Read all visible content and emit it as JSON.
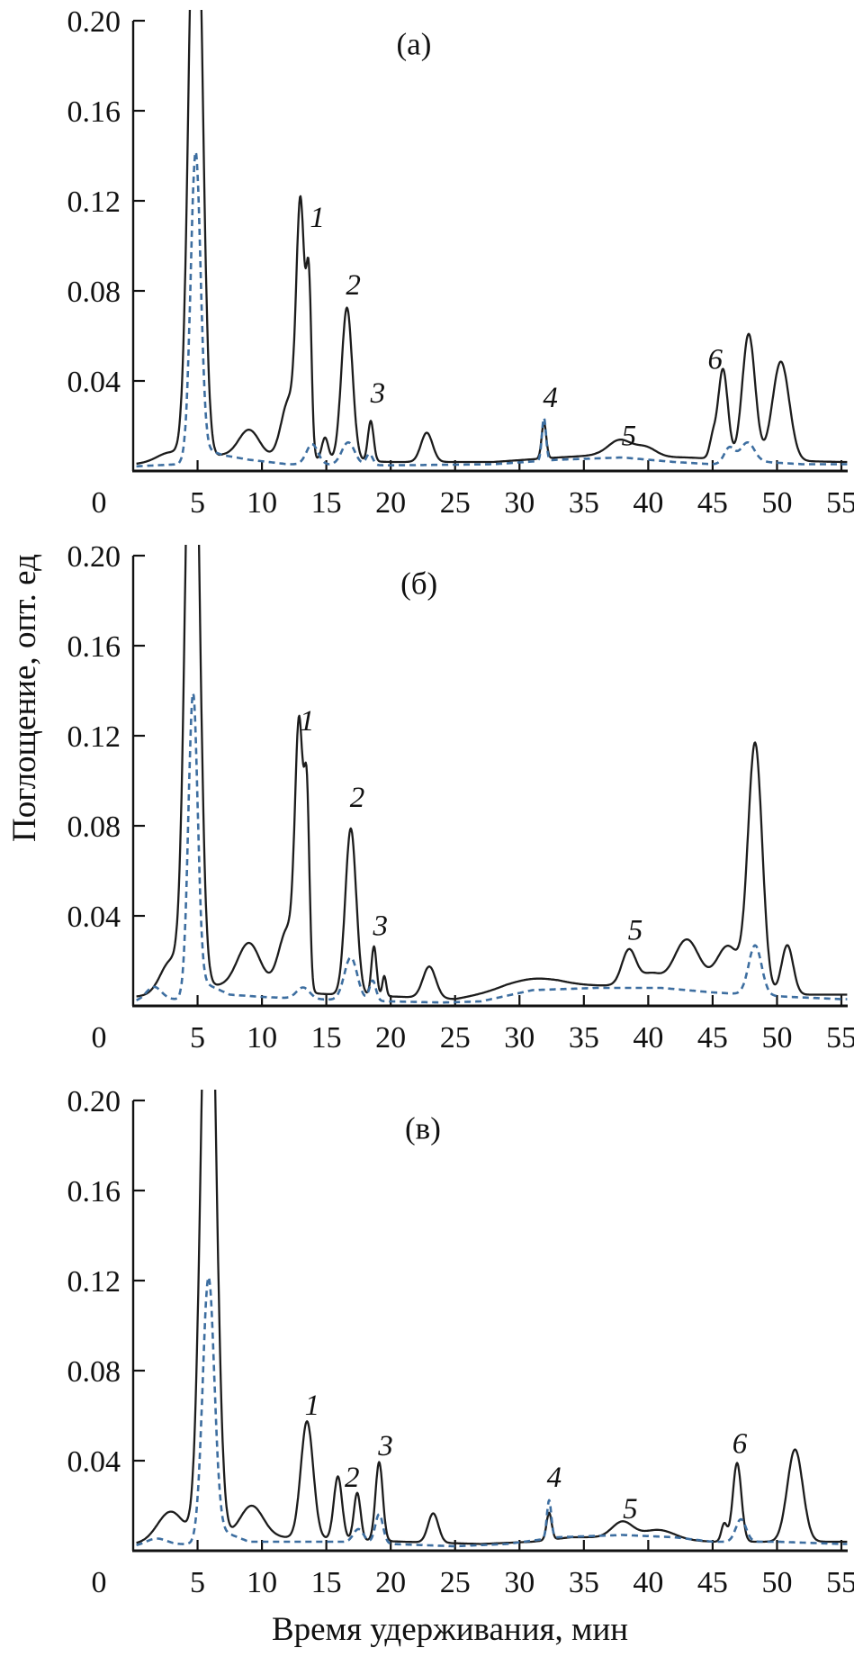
{
  "figure": {
    "description": "Three stacked HPLC chromatogram panels",
    "panel_letters": [
      "(а)",
      "(б)",
      "(в)"
    ]
  },
  "chart_data": {
    "type": "line",
    "title": "",
    "xlabel": "Время удерживания, мин",
    "ylabel": "Поглощение, опт. ед",
    "xlim": [
      0,
      55
    ],
    "ylim": [
      0,
      0.2
    ],
    "x_ticks": [
      0,
      5,
      10,
      15,
      20,
      25,
      30,
      35,
      40,
      45,
      50,
      55
    ],
    "y_tick_values": [
      0.04,
      0.08,
      0.12,
      0.16,
      0.2
    ],
    "y_tick_labels": [
      "0.04",
      "0.08",
      "0.12",
      "0.16",
      "0.20"
    ],
    "grid": false,
    "legend": "none",
    "colors": {
      "solid_line": "#1c1c1c",
      "dashed_line": "#3d6ea0"
    },
    "series_model": "each series = sum of gaussian peaks [center_min, height_au, sigma_min] over linear baseline [x_min, y_au]",
    "panels": [
      {
        "label": "(а)",
        "label_pos": {
          "x": 21.8,
          "y": 0.19
        },
        "annotations": [
          {
            "n": "1",
            "x": 14.3,
            "y": 0.113
          },
          {
            "n": "2",
            "x": 17.1,
            "y": 0.083
          },
          {
            "n": "3",
            "x": 19.0,
            "y": 0.035
          },
          {
            "n": "4",
            "x": 32.4,
            "y": 0.033
          },
          {
            "n": "5",
            "x": 38.5,
            "y": 0.016
          },
          {
            "n": "6",
            "x": 45.2,
            "y": 0.05
          }
        ],
        "solid": {
          "peaks": [
            [
              2.9,
              0.004,
              1.0
            ],
            [
              4.85,
              0.3,
              0.5
            ],
            [
              9.0,
              0.012,
              0.8
            ],
            [
              12.1,
              0.026,
              0.6
            ],
            [
              13.0,
              0.108,
              0.32
            ],
            [
              13.65,
              0.072,
              0.2
            ],
            [
              14.9,
              0.01,
              0.25
            ],
            [
              16.6,
              0.068,
              0.42
            ],
            [
              18.45,
              0.018,
              0.22
            ],
            [
              22.8,
              0.013,
              0.45
            ],
            [
              31.9,
              0.016,
              0.18
            ],
            [
              37.8,
              0.007,
              0.9
            ],
            [
              39.8,
              0.004,
              0.8
            ],
            [
              45.0,
              0.008,
              0.25
            ],
            [
              45.8,
              0.04,
              0.38
            ],
            [
              47.8,
              0.056,
              0.5
            ],
            [
              50.3,
              0.044,
              0.65
            ]
          ],
          "baseline": [
            [
              0,
              0.003
            ],
            [
              2,
              0.004
            ],
            [
              5,
              0.005
            ],
            [
              7,
              0.007
            ],
            [
              10,
              0.006
            ],
            [
              14,
              0.005
            ],
            [
              20,
              0.004
            ],
            [
              28,
              0.004
            ],
            [
              33,
              0.006
            ],
            [
              36,
              0.007
            ],
            [
              43,
              0.006
            ],
            [
              47,
              0.005
            ],
            [
              55,
              0.004
            ]
          ]
        },
        "dashed": {
          "peaks": [
            [
              4.85,
              0.134,
              0.38
            ],
            [
              13.9,
              0.009,
              0.45
            ],
            [
              16.7,
              0.01,
              0.5
            ],
            [
              18.35,
              0.005,
              0.25
            ],
            [
              31.9,
              0.019,
              0.16
            ],
            [
              46.3,
              0.007,
              0.4
            ],
            [
              47.7,
              0.009,
              0.55
            ]
          ],
          "baseline": [
            [
              0,
              0.002
            ],
            [
              3.5,
              0.003
            ],
            [
              5.5,
              0.01
            ],
            [
              7,
              0.007
            ],
            [
              9,
              0.005
            ],
            [
              12,
              0.003
            ],
            [
              20,
              0.0025
            ],
            [
              28,
              0.003
            ],
            [
              33,
              0.005
            ],
            [
              38,
              0.006
            ],
            [
              42,
              0.004
            ],
            [
              45,
              0.003
            ],
            [
              49,
              0.004
            ],
            [
              52,
              0.003
            ],
            [
              55,
              0.003
            ]
          ]
        }
      },
      {
        "label": "(б)",
        "label_pos": {
          "x": 22.2,
          "y": 0.188
        },
        "annotations": [
          {
            "n": "1",
            "x": 13.5,
            "y": 0.127
          },
          {
            "n": "2",
            "x": 17.4,
            "y": 0.093
          },
          {
            "n": "3",
            "x": 19.2,
            "y": 0.036
          },
          {
            "n": "5",
            "x": 39.0,
            "y": 0.034
          }
        ],
        "solid": {
          "peaks": [
            [
              2.9,
              0.014,
              0.8
            ],
            [
              4.6,
              0.33,
              0.5
            ],
            [
              9.0,
              0.02,
              0.9
            ],
            [
              12.0,
              0.028,
              0.7
            ],
            [
              12.9,
              0.11,
              0.32
            ],
            [
              13.5,
              0.075,
              0.2
            ],
            [
              16.9,
              0.074,
              0.42
            ],
            [
              18.7,
              0.022,
              0.2
            ],
            [
              19.5,
              0.009,
              0.15
            ],
            [
              23.0,
              0.014,
              0.5
            ],
            [
              31.0,
              0.004,
              2.0
            ],
            [
              38.5,
              0.016,
              0.55
            ],
            [
              40.2,
              0.006,
              0.8
            ],
            [
              43.0,
              0.022,
              1.0
            ],
            [
              46.2,
              0.02,
              0.9
            ],
            [
              48.3,
              0.11,
              0.55
            ],
            [
              50.8,
              0.022,
              0.45
            ]
          ],
          "baseline": [
            [
              0,
              0.004
            ],
            [
              2,
              0.005
            ],
            [
              6,
              0.009
            ],
            [
              9,
              0.008
            ],
            [
              12,
              0.006
            ],
            [
              16,
              0.005
            ],
            [
              21,
              0.004
            ],
            [
              25,
              0.003
            ],
            [
              29,
              0.007
            ],
            [
              33,
              0.009
            ],
            [
              37,
              0.009
            ],
            [
              41,
              0.008
            ],
            [
              45,
              0.007
            ],
            [
              50,
              0.005
            ],
            [
              55,
              0.005
            ]
          ]
        },
        "dashed": {
          "peaks": [
            [
              1.6,
              0.006,
              0.6
            ],
            [
              4.65,
              0.132,
              0.36
            ],
            [
              13.2,
              0.005,
              0.5
            ],
            [
              16.9,
              0.019,
              0.5
            ],
            [
              18.6,
              0.009,
              0.25
            ],
            [
              48.3,
              0.022,
              0.5
            ]
          ],
          "baseline": [
            [
              0,
              0.002
            ],
            [
              3.5,
              0.003
            ],
            [
              5.6,
              0.01
            ],
            [
              7.5,
              0.005
            ],
            [
              10,
              0.004
            ],
            [
              14,
              0.003
            ],
            [
              20,
              0.002
            ],
            [
              24,
              0.0015
            ],
            [
              27,
              0.002
            ],
            [
              31,
              0.007
            ],
            [
              36,
              0.008
            ],
            [
              41,
              0.008
            ],
            [
              45,
              0.006
            ],
            [
              51,
              0.004
            ],
            [
              55,
              0.003
            ]
          ]
        }
      },
      {
        "label": "(в)",
        "label_pos": {
          "x": 22.5,
          "y": 0.188
        },
        "annotations": [
          {
            "n": "1",
            "x": 13.9,
            "y": 0.065
          },
          {
            "n": "2",
            "x": 17.0,
            "y": 0.033
          },
          {
            "n": "3",
            "x": 19.6,
            "y": 0.047
          },
          {
            "n": "4",
            "x": 32.7,
            "y": 0.033
          },
          {
            "n": "5",
            "x": 38.6,
            "y": 0.019
          },
          {
            "n": "6",
            "x": 47.1,
            "y": 0.048
          }
        ],
        "solid": {
          "peaks": [
            [
              2.9,
              0.013,
              1.0
            ],
            [
              5.85,
              0.31,
              0.55
            ],
            [
              9.2,
              0.014,
              0.9
            ],
            [
              13.5,
              0.052,
              0.48
            ],
            [
              15.9,
              0.028,
              0.32
            ],
            [
              17.4,
              0.021,
              0.26
            ],
            [
              19.1,
              0.035,
              0.28
            ],
            [
              23.3,
              0.013,
              0.4
            ],
            [
              32.3,
              0.012,
              0.2
            ],
            [
              38.0,
              0.007,
              0.8
            ],
            [
              40.8,
              0.004,
              1.2
            ],
            [
              45.9,
              0.008,
              0.22
            ],
            [
              46.9,
              0.035,
              0.33
            ],
            [
              51.4,
              0.041,
              0.6
            ]
          ],
          "baseline": [
            [
              0,
              0.003
            ],
            [
              2,
              0.004
            ],
            [
              7,
              0.006
            ],
            [
              11,
              0.006
            ],
            [
              16,
              0.005
            ],
            [
              21,
              0.004
            ],
            [
              27,
              0.003
            ],
            [
              31,
              0.004
            ],
            [
              34,
              0.006
            ],
            [
              37,
              0.006
            ],
            [
              42,
              0.005
            ],
            [
              45,
              0.004
            ],
            [
              55,
              0.004
            ]
          ]
        },
        "dashed": {
          "peaks": [
            [
              1.8,
              0.003,
              0.8
            ],
            [
              5.85,
              0.115,
              0.45
            ],
            [
              17.5,
              0.006,
              0.4
            ],
            [
              19.1,
              0.013,
              0.3
            ],
            [
              32.3,
              0.017,
              0.17
            ],
            [
              47.2,
              0.01,
              0.4
            ]
          ],
          "baseline": [
            [
              0,
              0.002
            ],
            [
              4.5,
              0.003
            ],
            [
              6.8,
              0.009
            ],
            [
              9,
              0.004
            ],
            [
              13,
              0.004
            ],
            [
              16,
              0.004
            ],
            [
              20,
              0.003
            ],
            [
              25,
              0.002
            ],
            [
              29,
              0.003
            ],
            [
              33,
              0.006
            ],
            [
              38,
              0.007
            ],
            [
              42,
              0.006
            ],
            [
              45,
              0.004
            ],
            [
              50,
              0.004
            ],
            [
              55,
              0.003
            ]
          ]
        }
      }
    ]
  }
}
